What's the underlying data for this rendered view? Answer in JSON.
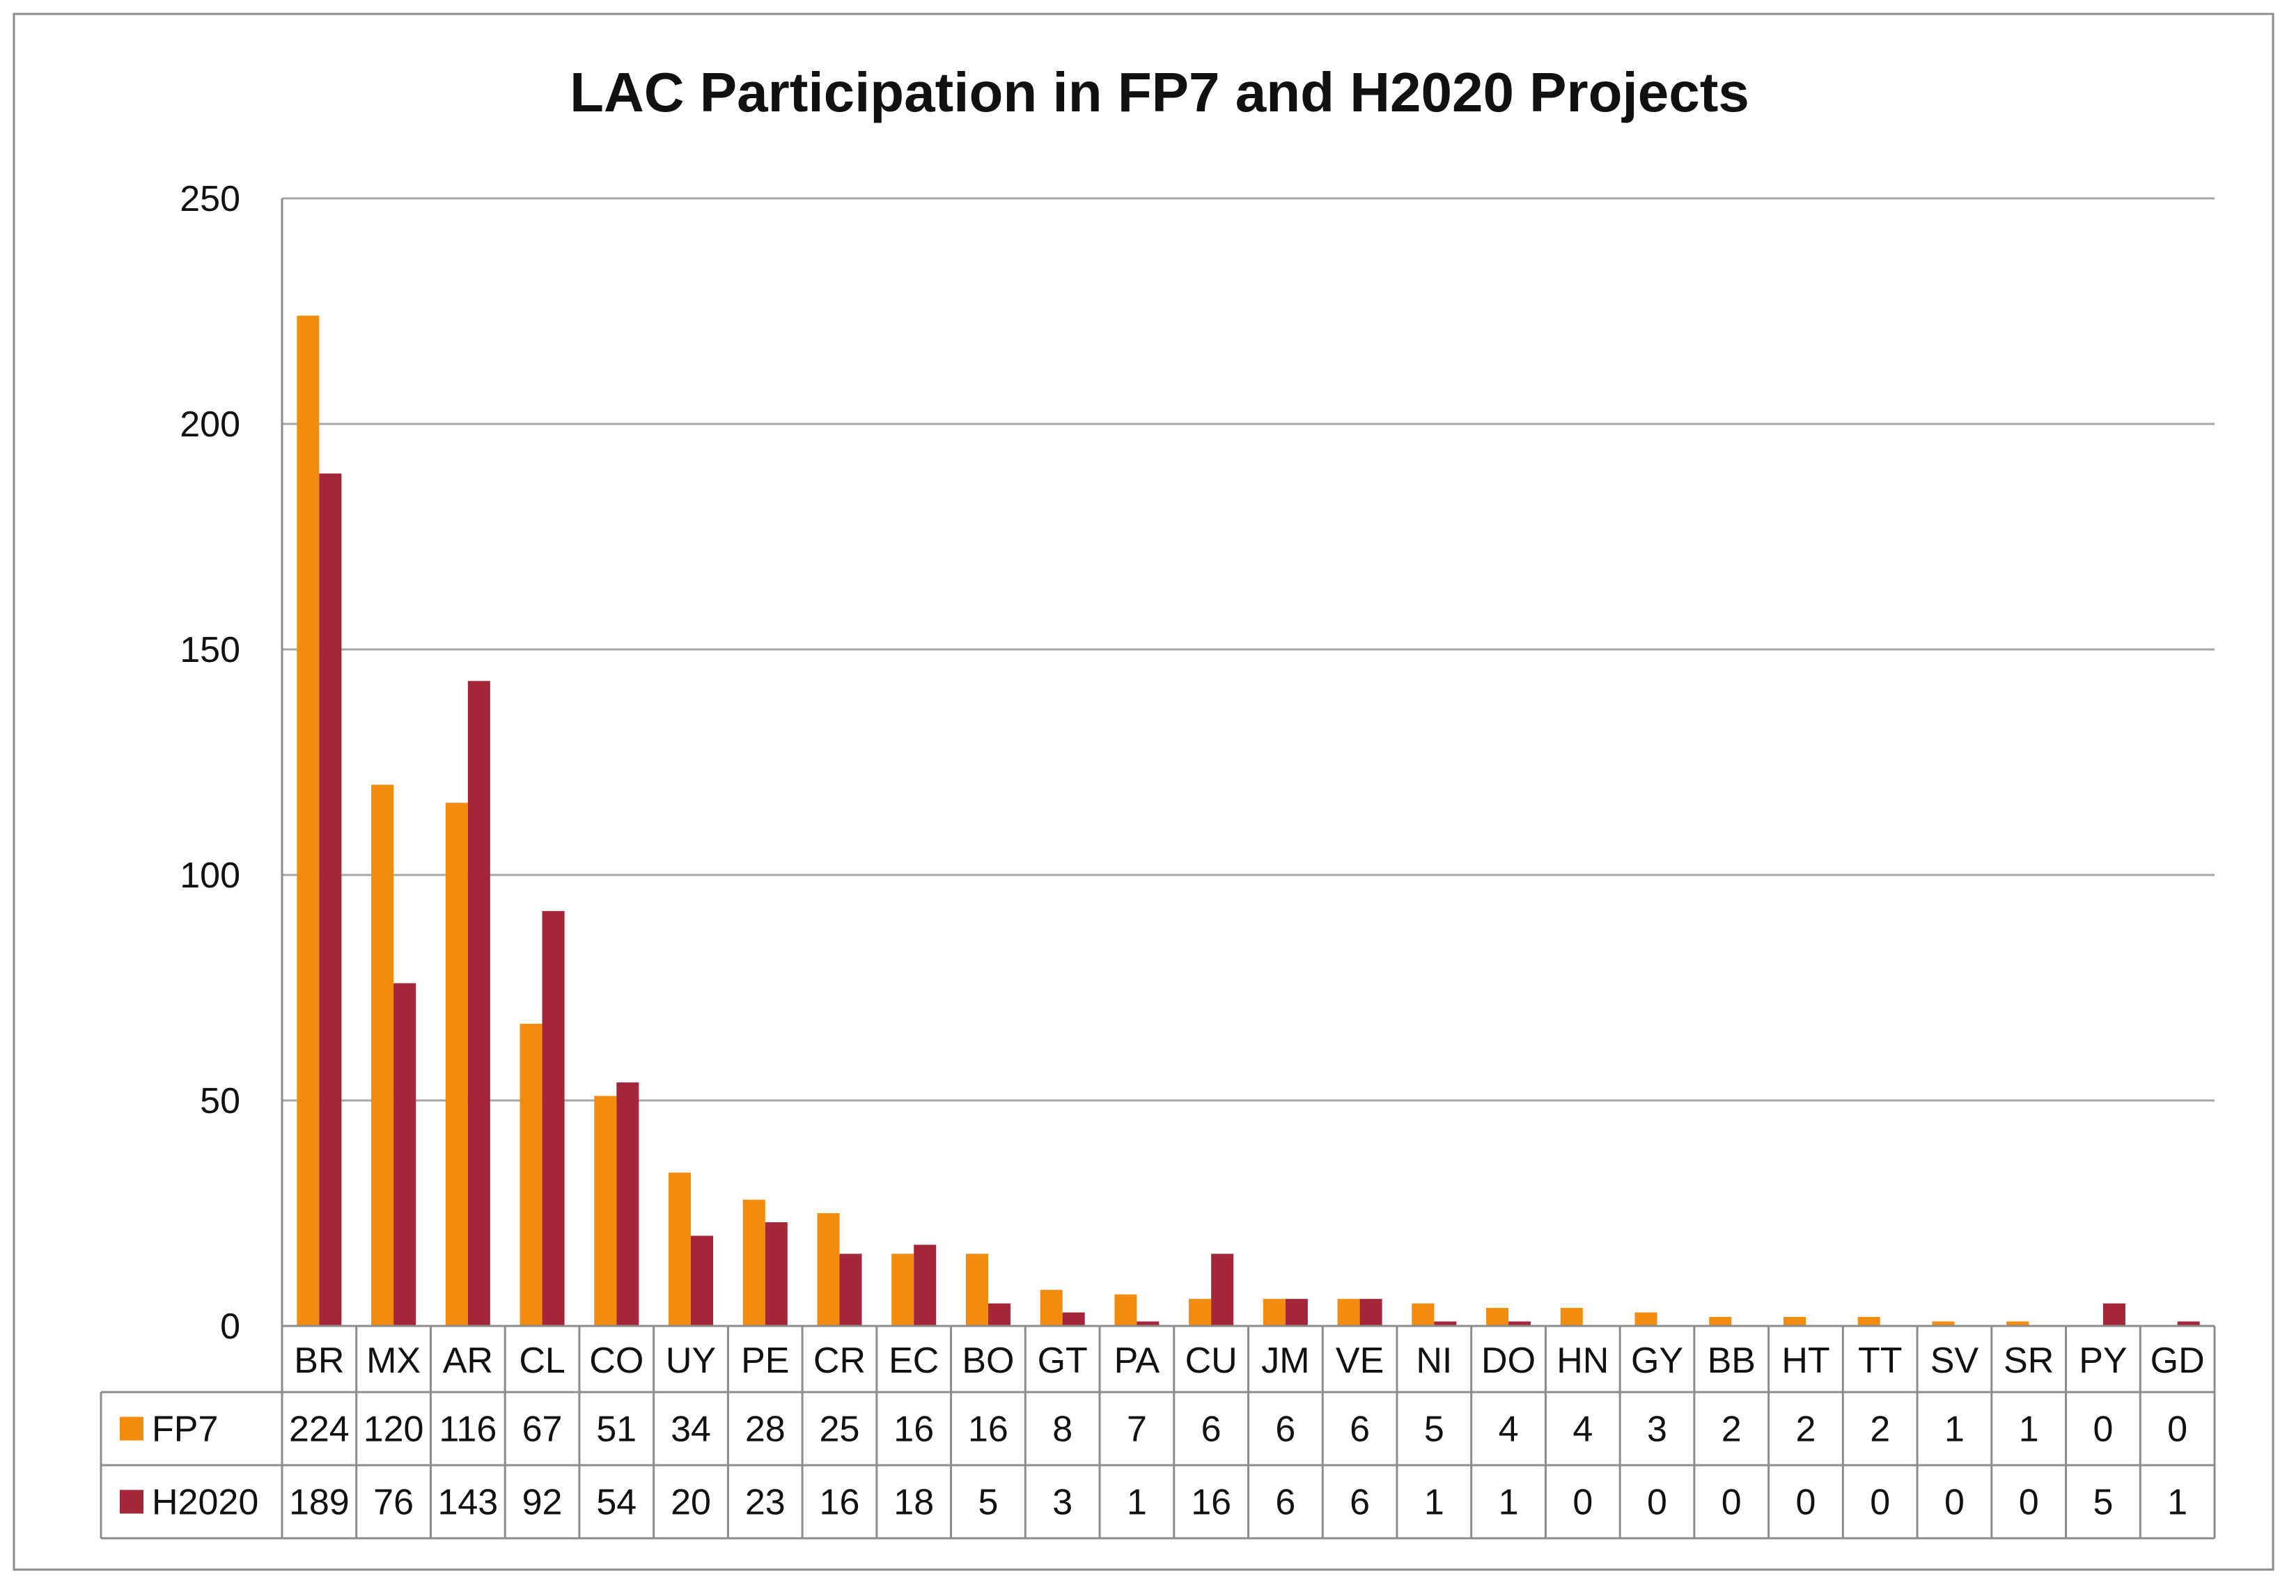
{
  "chart_data": {
    "type": "bar",
    "title": "LAC Participation in FP7 and H2020 Projects",
    "xlabel": "",
    "ylabel": "",
    "ylim": [
      0,
      250
    ],
    "yticks": [
      0,
      50,
      100,
      150,
      200,
      250
    ],
    "grid": true,
    "legend": "data-table-left",
    "categories": [
      "BR",
      "MX",
      "AR",
      "CL",
      "CO",
      "UY",
      "PE",
      "CR",
      "EC",
      "BO",
      "GT",
      "PA",
      "CU",
      "JM",
      "VE",
      "NI",
      "DO",
      "HN",
      "GY",
      "BB",
      "HT",
      "TT",
      "SV",
      "SR",
      "PY",
      "GD"
    ],
    "series": [
      {
        "name": "FP7",
        "color": "#F28C0F",
        "values": [
          224,
          120,
          116,
          67,
          51,
          34,
          28,
          25,
          16,
          16,
          8,
          7,
          6,
          6,
          6,
          5,
          4,
          4,
          3,
          2,
          2,
          2,
          1,
          1,
          0,
          0
        ]
      },
      {
        "name": "H2020",
        "color": "#A3263A",
        "values": [
          189,
          76,
          143,
          92,
          54,
          20,
          23,
          16,
          18,
          5,
          3,
          1,
          16,
          6,
          6,
          1,
          1,
          0,
          0,
          0,
          0,
          0,
          0,
          0,
          5,
          1
        ]
      }
    ]
  }
}
